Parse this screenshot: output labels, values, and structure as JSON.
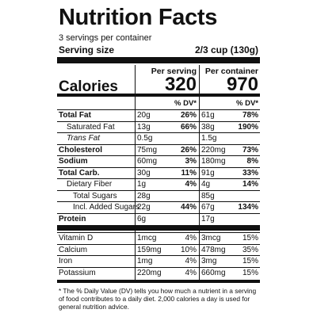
{
  "title": "Nutrition Facts",
  "servings": "3 servings per container",
  "serving_size_label": "Serving size",
  "serving_size_value": "2/3 cup (130g)",
  "columns": [
    "Per serving",
    "Per container"
  ],
  "calories_label": "Calories",
  "calories": [
    "320",
    "970"
  ],
  "dv_header": [
    "% DV*",
    "% DV*"
  ],
  "nutrients": [
    {
      "name": "Total Fat",
      "per_serving": {
        "amount": "20g",
        "dv": "26%"
      },
      "per_container": {
        "amount": "61g",
        "dv": "78%"
      }
    },
    {
      "name": "Saturated Fat",
      "per_serving": {
        "amount": "13g",
        "dv": "66%"
      },
      "per_container": {
        "amount": "38g",
        "dv": "190%"
      }
    },
    {
      "name": "Trans Fat",
      "per_serving": {
        "amount": "0.5g"
      },
      "per_container": {
        "amount": "1.5g"
      }
    },
    {
      "name": "Cholesterol",
      "per_serving": {
        "amount": "75mg",
        "dv": "26%"
      },
      "per_container": {
        "amount": "220mg",
        "dv": "73%"
      }
    },
    {
      "name": "Sodium",
      "per_serving": {
        "amount": "60mg",
        "dv": "3%"
      },
      "per_container": {
        "amount": "180mg",
        "dv": "8%"
      }
    },
    {
      "name": "Total Carb.",
      "per_serving": {
        "amount": "30g",
        "dv": "11%"
      },
      "per_container": {
        "amount": "91g",
        "dv": "33%"
      }
    },
    {
      "name": "Dietary Fiber",
      "per_serving": {
        "amount": "1g",
        "dv": "4%"
      },
      "per_container": {
        "amount": "4g",
        "dv": "14%"
      }
    },
    {
      "name": "Total Sugars",
      "per_serving": {
        "amount": "28g"
      },
      "per_container": {
        "amount": "85g"
      }
    },
    {
      "name": "Incl. Added Sugars",
      "per_serving": {
        "amount": "22g",
        "dv": "44%"
      },
      "per_container": {
        "amount": "67g",
        "dv": "134%"
      }
    },
    {
      "name": "Protein",
      "per_serving": {
        "amount": "6g"
      },
      "per_container": {
        "amount": "17g"
      }
    }
  ],
  "vitamins": [
    {
      "name": "Vitamin D",
      "per_serving": {
        "amount": "1mcg",
        "dv": "4%"
      },
      "per_container": {
        "amount": "3mcg",
        "dv": "15%"
      }
    },
    {
      "name": "Calcium",
      "per_serving": {
        "amount": "159mg",
        "dv": "10%"
      },
      "per_container": {
        "amount": "478mg",
        "dv": "35%"
      }
    },
    {
      "name": "Iron",
      "per_serving": {
        "amount": "1mg",
        "dv": "4%"
      },
      "per_container": {
        "amount": "3mg",
        "dv": "15%"
      }
    },
    {
      "name": "Potassium",
      "per_serving": {
        "amount": "220mg",
        "dv": "4%"
      },
      "per_container": {
        "amount": "660mg",
        "dv": "15%"
      }
    }
  ],
  "footnote": "* The % Daily Value (DV) tells you how much a nutrient in a serving of food contributes to a daily diet. 2,000 calories a day is used for general nutrition advice."
}
